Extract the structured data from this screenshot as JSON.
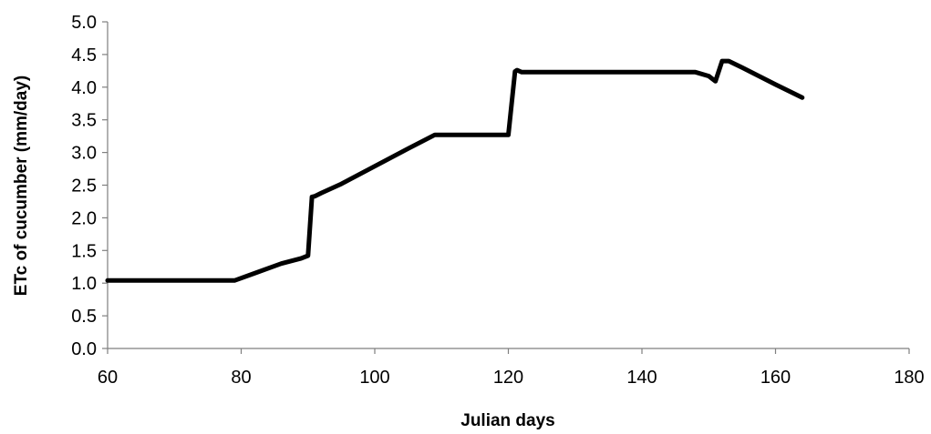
{
  "chart_data": {
    "type": "line",
    "title": "",
    "xlabel": "Julian days",
    "ylabel": "ETc of cucumber (mm/day)",
    "xlim": [
      60,
      180
    ],
    "ylim": [
      0,
      5.0
    ],
    "x_ticks": [
      "60",
      "80",
      "100",
      "120",
      "140",
      "160",
      "180"
    ],
    "y_ticks": [
      "0.0",
      "0.5",
      "1.0",
      "1.5",
      "2.0",
      "2.5",
      "3.0",
      "3.5",
      "4.0",
      "4.5",
      "5.0"
    ],
    "grid": false,
    "legend": "none",
    "line_color": "#000000",
    "series": [
      {
        "x": [
          60,
          79,
          82,
          86,
          89,
          90,
          90.6,
          91,
          92,
          95,
          100,
          105,
          109,
          112,
          117,
          120,
          121,
          121.3,
          122,
          130,
          140,
          148,
          150,
          151,
          152,
          153,
          155,
          160,
          164
        ],
        "y": [
          1.04,
          1.04,
          1.15,
          1.3,
          1.38,
          1.42,
          2.32,
          2.33,
          2.38,
          2.52,
          2.79,
          3.06,
          3.27,
          3.27,
          3.27,
          3.27,
          4.24,
          4.26,
          4.23,
          4.23,
          4.23,
          4.23,
          4.17,
          4.09,
          4.4,
          4.4,
          4.3,
          4.04,
          3.84
        ]
      }
    ]
  }
}
